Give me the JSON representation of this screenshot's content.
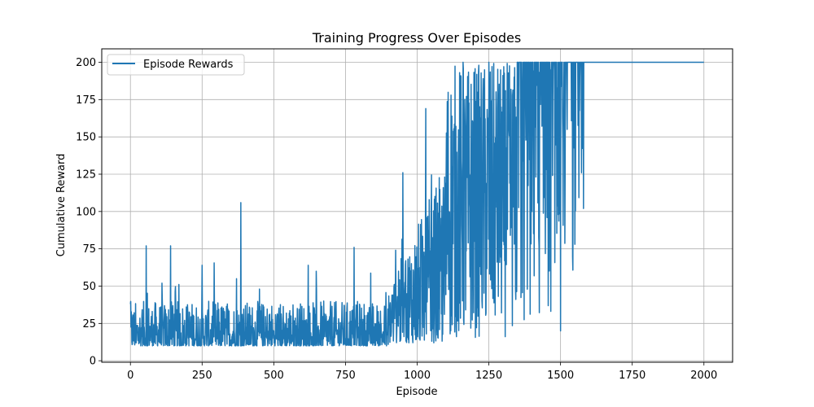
{
  "chart_data": {
    "type": "line",
    "title": "Training Progress Over Episodes",
    "xlabel": "Episode",
    "ylabel": "Cumulative Reward",
    "xlim": [
      -100,
      2100
    ],
    "ylim": [
      -1,
      209
    ],
    "xticks": [
      0,
      250,
      500,
      750,
      1000,
      1250,
      1500,
      1750,
      2000
    ],
    "yticks": [
      0,
      25,
      50,
      75,
      100,
      125,
      150,
      175,
      200
    ],
    "grid": true,
    "legend": {
      "position": "top-left",
      "entries": [
        "Episode Rewards"
      ]
    },
    "series": [
      {
        "name": "Episode Rewards",
        "color": "#1f77b4",
        "x_start": 0,
        "x_end": 2000,
        "sampled_points": [
          [
            0,
            38
          ],
          [
            20,
            12
          ],
          [
            40,
            30
          ],
          [
            55,
            77
          ],
          [
            70,
            18
          ],
          [
            100,
            25
          ],
          [
            110,
            52
          ],
          [
            140,
            77
          ],
          [
            160,
            20
          ],
          [
            200,
            33
          ],
          [
            250,
            64
          ],
          [
            300,
            15
          ],
          [
            370,
            55
          ],
          [
            385,
            106
          ],
          [
            400,
            20
          ],
          [
            450,
            48
          ],
          [
            500,
            20
          ],
          [
            560,
            30
          ],
          [
            620,
            64
          ],
          [
            700,
            15
          ],
          [
            780,
            76
          ],
          [
            820,
            20
          ],
          [
            900,
            25
          ],
          [
            935,
            60
          ],
          [
            950,
            126
          ],
          [
            1000,
            50
          ],
          [
            1030,
            169
          ],
          [
            1080,
            60
          ],
          [
            1150,
            187
          ],
          [
            1160,
            200
          ],
          [
            1200,
            80
          ],
          [
            1250,
            200
          ],
          [
            1300,
            80
          ],
          [
            1350,
            200
          ],
          [
            1400,
            100
          ],
          [
            1450,
            200
          ],
          [
            1500,
            20
          ],
          [
            1520,
            200
          ],
          [
            1550,
            78
          ],
          [
            1570,
            200
          ],
          [
            1580,
            102
          ],
          [
            1600,
            200
          ],
          [
            1800,
            200
          ],
          [
            2000,
            200
          ]
        ]
      }
    ]
  }
}
